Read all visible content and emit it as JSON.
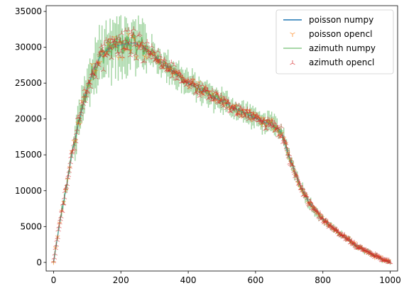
{
  "chart_data": {
    "type": "line",
    "title": "",
    "xlabel": "",
    "ylabel": "",
    "xlim": [
      -22,
      1022
    ],
    "ylim": [
      -1200,
      35800
    ],
    "xticks": [
      0,
      200,
      400,
      600,
      800,
      1000
    ],
    "yticks": [
      0,
      5000,
      10000,
      15000,
      20000,
      25000,
      30000,
      35000
    ],
    "grid": false,
    "legend_position": "top-right",
    "profile_points": [
      [
        0,
        0
      ],
      [
        10,
        3000
      ],
      [
        20,
        6000
      ],
      [
        30,
        8500
      ],
      [
        40,
        11000
      ],
      [
        50,
        14000
      ],
      [
        60,
        16500
      ],
      [
        70,
        18500
      ],
      [
        80,
        20500
      ],
      [
        90,
        22500
      ],
      [
        100,
        24300
      ],
      [
        120,
        27000
      ],
      [
        140,
        28800
      ],
      [
        160,
        29700
      ],
      [
        180,
        30100
      ],
      [
        200,
        30300
      ],
      [
        220,
        30500
      ],
      [
        240,
        30600
      ],
      [
        260,
        30200
      ],
      [
        280,
        29600
      ],
      [
        300,
        28800
      ],
      [
        350,
        26800
      ],
      [
        400,
        25000
      ],
      [
        450,
        23700
      ],
      [
        500,
        22500
      ],
      [
        550,
        21200
      ],
      [
        600,
        20100
      ],
      [
        650,
        19100
      ],
      [
        670,
        18500
      ],
      [
        680,
        17800
      ],
      [
        690,
        16000
      ],
      [
        700,
        14800
      ],
      [
        710,
        13500
      ],
      [
        720,
        12200
      ],
      [
        740,
        10000
      ],
      [
        760,
        8300
      ],
      [
        800,
        6000
      ],
      [
        850,
        4000
      ],
      [
        900,
        2300
      ],
      [
        950,
        1000
      ],
      [
        1000,
        0
      ]
    ],
    "series": [
      {
        "name": "poisson numpy",
        "color": "#1f77b4",
        "style": "line"
      },
      {
        "name": "poisson opencl",
        "color": "#ff7f0e",
        "style": "tri_down marker"
      },
      {
        "name": "azimuth numpy",
        "color": "#2ca02c",
        "style": "line with error bars"
      },
      {
        "name": "azimuth opencl",
        "color": "#d62728",
        "style": "tri_up marker"
      }
    ]
  }
}
